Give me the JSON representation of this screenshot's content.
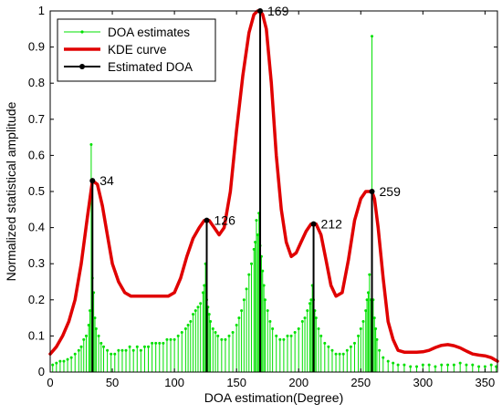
{
  "chart_data": {
    "type": "line",
    "xlabel": "DOA estimation(Degree)",
    "ylabel": "Normalized statistical amplitude",
    "xlim": [
      0,
      360
    ],
    "ylim": [
      0,
      1
    ],
    "x_ticks": [
      "0",
      "50",
      "100",
      "150",
      "200",
      "250",
      "300",
      "350"
    ],
    "y_ticks": [
      "0",
      "0.1",
      "0.2",
      "0.3",
      "0.4",
      "0.5",
      "0.6",
      "0.7",
      "0.8",
      "0.9",
      "1"
    ],
    "grid": false,
    "legend_position": "top-left",
    "series": [
      {
        "name": "DOA estimates",
        "style": "stem",
        "color": "#00e000",
        "x": [
          2,
          5,
          8,
          11,
          14,
          17,
          20,
          23,
          25,
          27,
          29,
          31,
          32,
          33,
          34,
          35,
          36,
          37,
          39,
          41,
          43,
          46,
          49,
          52,
          55,
          58,
          61,
          64,
          67,
          70,
          73,
          76,
          79,
          82,
          85,
          88,
          91,
          94,
          97,
          100,
          103,
          106,
          109,
          111,
          113,
          115,
          117,
          119,
          121,
          123,
          124,
          125,
          126,
          127,
          128,
          129,
          131,
          133,
          135,
          138,
          141,
          144,
          147,
          150,
          152,
          154,
          156,
          158,
          160,
          162,
          164,
          165,
          166,
          167,
          168,
          169,
          170,
          171,
          172,
          173,
          175,
          177,
          179,
          182,
          185,
          188,
          191,
          194,
          197,
          200,
          203,
          205,
          207,
          209,
          210,
          211,
          212,
          213,
          214,
          216,
          218,
          221,
          224,
          227,
          230,
          233,
          236,
          239,
          242,
          245,
          248,
          250,
          252,
          254,
          255,
          256,
          257,
          258,
          259,
          260,
          261,
          262,
          263,
          265,
          268,
          272,
          276,
          280,
          285,
          290,
          295,
          300,
          305,
          310,
          315,
          320,
          325,
          330,
          335,
          340,
          345,
          350,
          355,
          359
        ],
        "values": [
          0.02,
          0.025,
          0.03,
          0.03,
          0.035,
          0.04,
          0.05,
          0.06,
          0.07,
          0.09,
          0.1,
          0.13,
          0.17,
          0.63,
          0.26,
          0.22,
          0.15,
          0.12,
          0.1,
          0.08,
          0.07,
          0.06,
          0.05,
          0.05,
          0.06,
          0.06,
          0.06,
          0.07,
          0.06,
          0.07,
          0.06,
          0.07,
          0.07,
          0.08,
          0.08,
          0.08,
          0.08,
          0.09,
          0.09,
          0.09,
          0.1,
          0.11,
          0.12,
          0.13,
          0.14,
          0.16,
          0.17,
          0.18,
          0.19,
          0.22,
          0.24,
          0.3,
          0.2,
          0.18,
          0.16,
          0.14,
          0.12,
          0.11,
          0.1,
          0.09,
          0.09,
          0.1,
          0.11,
          0.13,
          0.15,
          0.17,
          0.2,
          0.23,
          0.27,
          0.3,
          0.34,
          0.36,
          0.42,
          0.38,
          0.44,
          0.35,
          0.32,
          0.28,
          0.24,
          0.2,
          0.17,
          0.14,
          0.12,
          0.1,
          0.09,
          0.09,
          0.1,
          0.1,
          0.11,
          0.12,
          0.14,
          0.15,
          0.17,
          0.19,
          0.2,
          0.24,
          0.2,
          0.17,
          0.15,
          0.12,
          0.1,
          0.08,
          0.07,
          0.06,
          0.05,
          0.05,
          0.05,
          0.06,
          0.07,
          0.08,
          0.1,
          0.12,
          0.14,
          0.17,
          0.2,
          0.22,
          0.27,
          0.2,
          0.93,
          0.2,
          0.15,
          0.12,
          0.09,
          0.06,
          0.04,
          0.03,
          0.025,
          0.02,
          0.02,
          0.015,
          0.015,
          0.02,
          0.02,
          0.015,
          0.02,
          0.02,
          0.02,
          0.025,
          0.02,
          0.02,
          0.015,
          0.015,
          0.02,
          0.015
        ]
      },
      {
        "name": "KDE curve",
        "style": "line",
        "color": "#e00000",
        "x": [
          0,
          5,
          10,
          15,
          20,
          25,
          30,
          34,
          38,
          42,
          46,
          50,
          55,
          60,
          65,
          70,
          75,
          80,
          85,
          90,
          95,
          100,
          105,
          110,
          115,
          120,
          124,
          126,
          128,
          132,
          136,
          140,
          145,
          150,
          155,
          160,
          164,
          167,
          169,
          171,
          174,
          178,
          182,
          186,
          190,
          194,
          198,
          202,
          206,
          210,
          212,
          214,
          218,
          222,
          226,
          230,
          235,
          240,
          245,
          250,
          254,
          257,
          259,
          261,
          264,
          268,
          272,
          276,
          280,
          285,
          290,
          295,
          300,
          305,
          310,
          315,
          320,
          325,
          330,
          335,
          340,
          345,
          350,
          355,
          360
        ],
        "values": [
          0.05,
          0.07,
          0.1,
          0.14,
          0.2,
          0.3,
          0.43,
          0.53,
          0.52,
          0.46,
          0.38,
          0.3,
          0.25,
          0.22,
          0.21,
          0.21,
          0.21,
          0.21,
          0.21,
          0.21,
          0.21,
          0.22,
          0.26,
          0.32,
          0.37,
          0.4,
          0.42,
          0.42,
          0.42,
          0.4,
          0.38,
          0.4,
          0.5,
          0.67,
          0.82,
          0.94,
          0.99,
          1.0,
          1.0,
          0.99,
          0.95,
          0.8,
          0.6,
          0.45,
          0.36,
          0.32,
          0.33,
          0.36,
          0.39,
          0.41,
          0.41,
          0.41,
          0.38,
          0.31,
          0.24,
          0.21,
          0.22,
          0.31,
          0.42,
          0.48,
          0.5,
          0.5,
          0.5,
          0.48,
          0.4,
          0.26,
          0.14,
          0.09,
          0.06,
          0.055,
          0.055,
          0.055,
          0.056,
          0.06,
          0.068,
          0.074,
          0.076,
          0.073,
          0.067,
          0.058,
          0.05,
          0.047,
          0.045,
          0.04,
          0.03
        ]
      },
      {
        "name": "Estimated DOA",
        "style": "stem",
        "color": "#000000",
        "x": [
          34,
          126,
          169,
          212,
          259
        ],
        "values": [
          0.53,
          0.42,
          1.0,
          0.41,
          0.5
        ]
      }
    ],
    "annotations": [
      {
        "text": "34",
        "x": 34,
        "y": 0.53
      },
      {
        "text": "126",
        "x": 126,
        "y": 0.42
      },
      {
        "text": "169",
        "x": 169,
        "y": 1.0
      },
      {
        "text": "212",
        "x": 212,
        "y": 0.41
      },
      {
        "text": "259",
        "x": 259,
        "y": 0.5
      }
    ]
  }
}
